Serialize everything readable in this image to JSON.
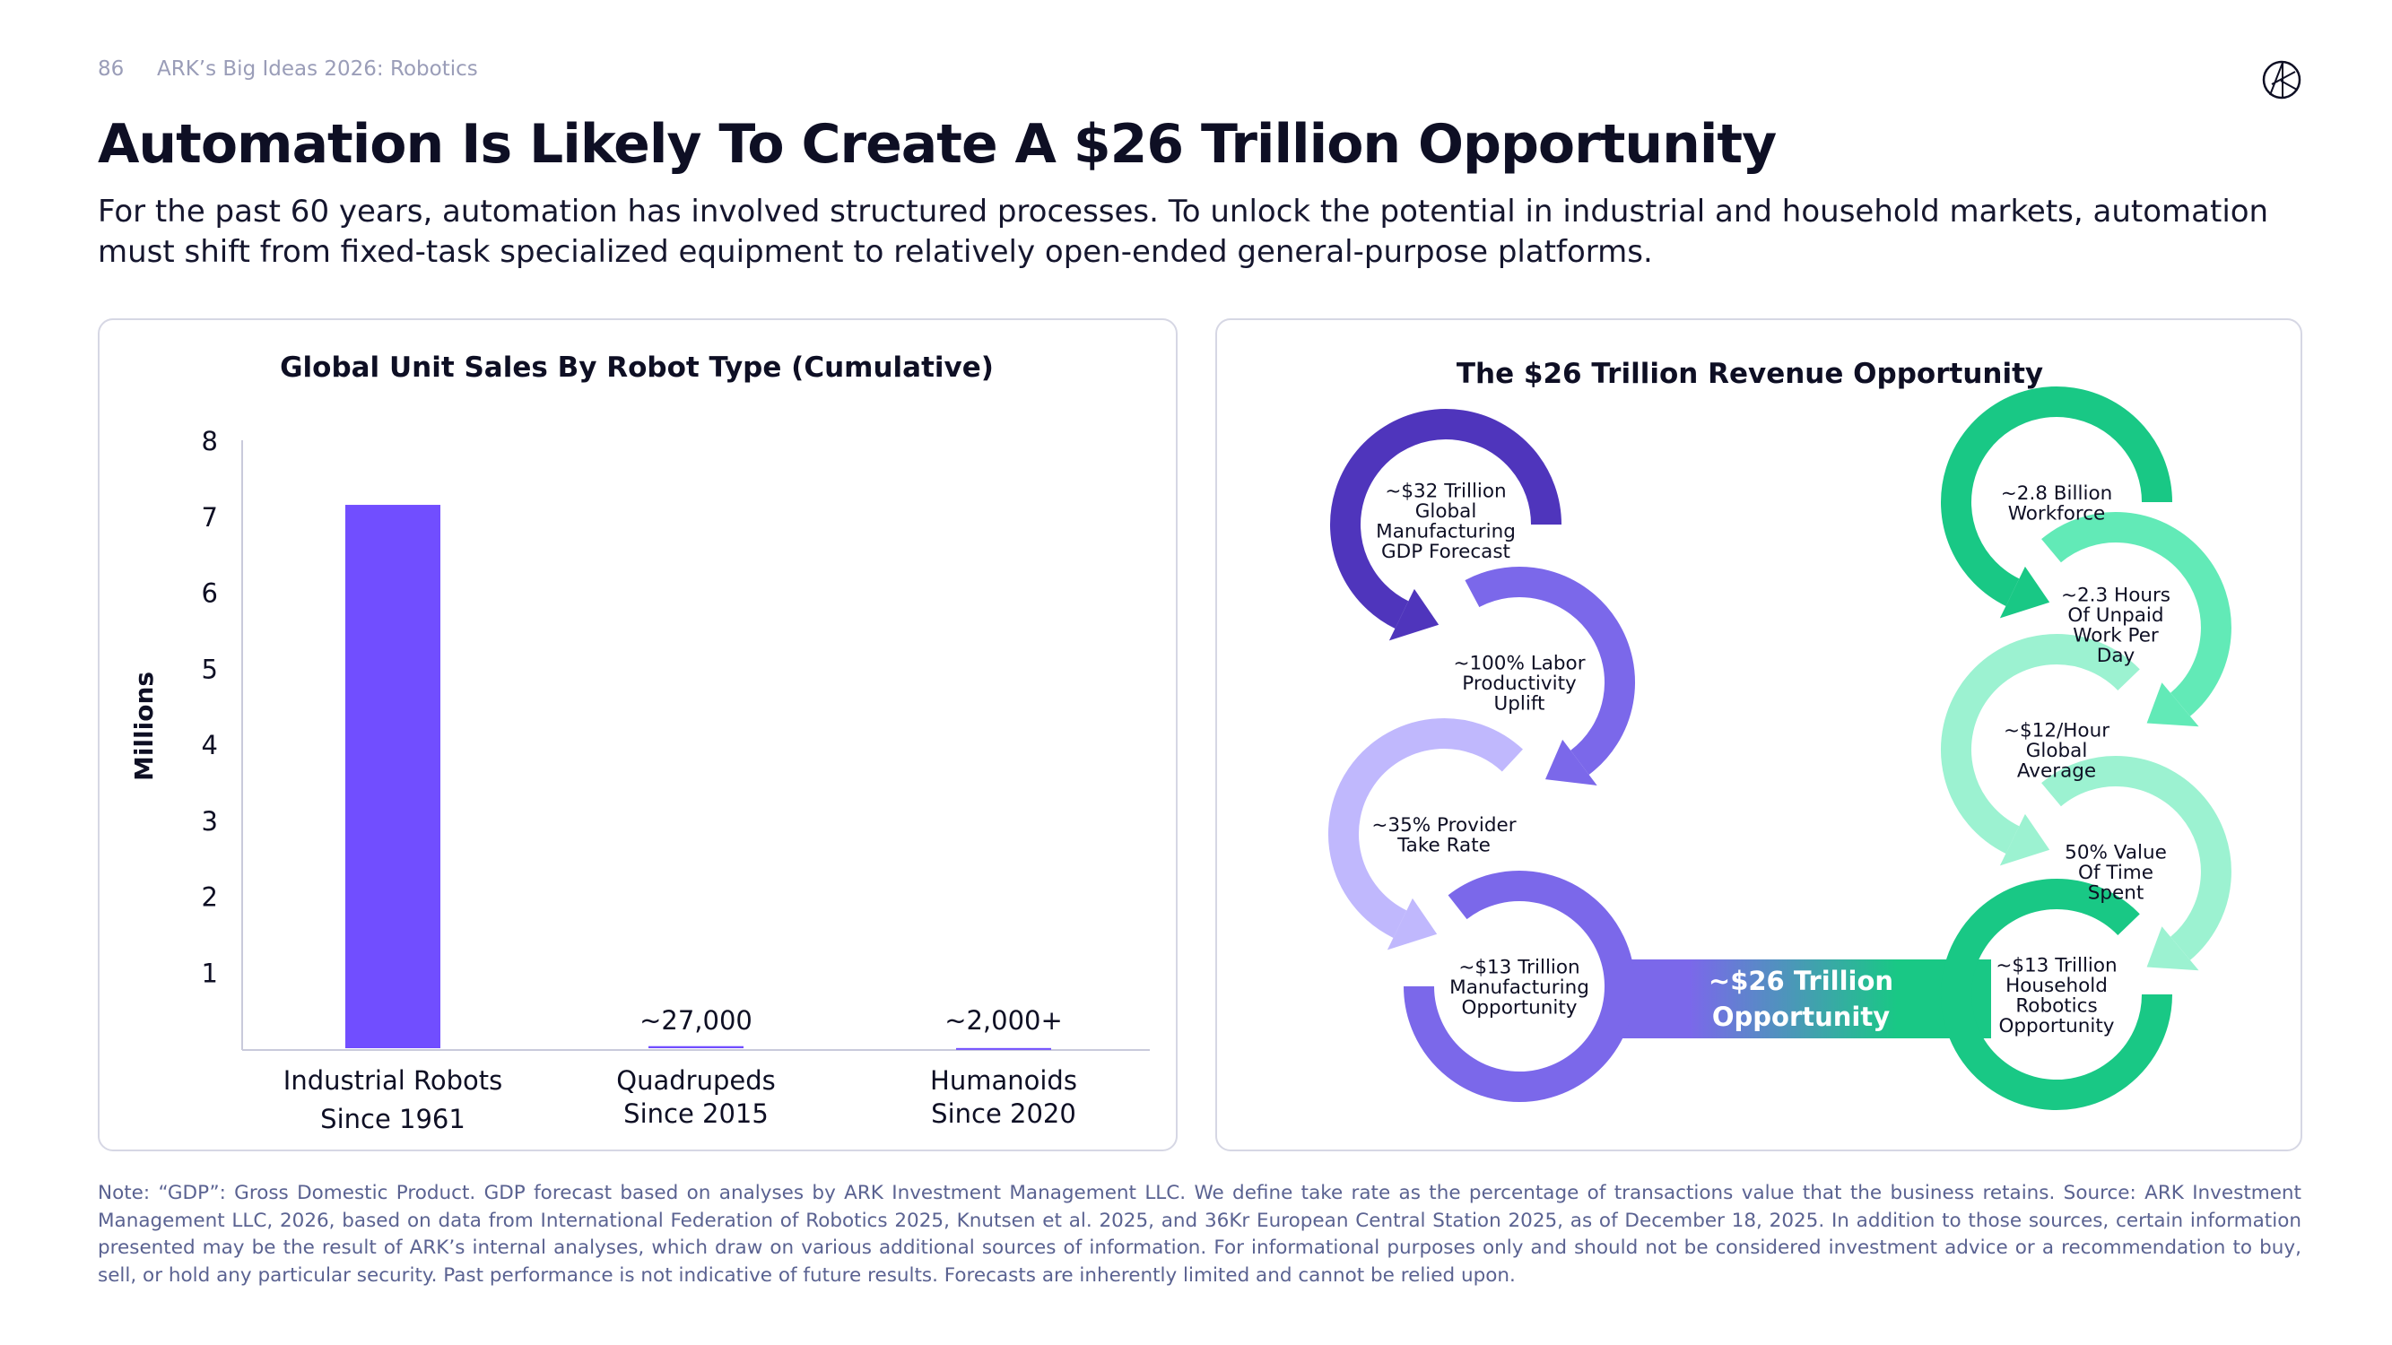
{
  "header": {
    "page_number": "86",
    "series_title": "ARK’s Big Ideas 2026: Robotics",
    "logo": "ark-logo-icon",
    "title": "Automation Is Likely To Create A $26 Trillion Opportunity",
    "subtitle": "For the past 60 years, automation has involved structured processes. To unlock the potential in industrial and household markets, automation must shift from fixed-task specialized equipment to relatively open-ended general-purpose platforms."
  },
  "chart_data": {
    "type": "bar",
    "title": "Global Unit Sales By Robot Type (Cumulative)",
    "ylabel": "Millions",
    "xlabel": "",
    "ylim": [
      0,
      8
    ],
    "yticks": [
      "1",
      "2",
      "3",
      "4",
      "5",
      "6",
      "7",
      "8"
    ],
    "grid": false,
    "bar_color": "#714EFF",
    "categories": [
      {
        "line1": "Industrial Robots",
        "line2": "Since 1961"
      },
      {
        "line1": "Quadrupeds",
        "line2": "Since 2015"
      },
      {
        "line1": "Humanoids",
        "line2": "Since 2020"
      }
    ],
    "values": [
      7.15,
      0.027,
      0.002
    ],
    "data_labels": [
      "",
      "~27,000",
      "~2,000+"
    ]
  },
  "diagram": {
    "title": "The $26 Trillion Revenue Opportunity",
    "center_label": [
      "~$26 Trillion",
      "Opportunity"
    ],
    "band_colors": [
      "#7B68EA",
      "#19C885"
    ],
    "manufacturing_chain": [
      {
        "lines": [
          "~$32 Trillion",
          "Global",
          "Manufacturing",
          "GDP Forecast"
        ],
        "color": "#4F35BC"
      },
      {
        "lines": [
          "~100% Labor",
          "Productivity",
          "Uplift"
        ],
        "color": "#7B68EA"
      },
      {
        "lines": [
          "~35% Provider",
          "Take Rate"
        ],
        "color": "#C0B8FD"
      },
      {
        "lines": [
          "~$13 Trillion",
          "Manufacturing",
          "Opportunity"
        ],
        "color": "#7B68EA"
      }
    ],
    "household_chain": [
      {
        "lines": [
          "~2.8 Billion",
          "Workforce"
        ],
        "color": "#19C885"
      },
      {
        "lines": [
          "~2.3 Hours",
          "Of Unpaid",
          "Work Per",
          "Day"
        ],
        "color": "#62EAB7"
      },
      {
        "lines": [
          "~$12/Hour",
          "Global",
          "Average"
        ],
        "color": "#9CF2D1"
      },
      {
        "lines": [
          "50% Value",
          "Of Time",
          "Spent"
        ],
        "color": "#9CF2D1"
      },
      {
        "lines": [
          "~$13 Trillion",
          "Household",
          "Robotics",
          "Opportunity"
        ],
        "color": "#19C885"
      }
    ]
  },
  "footer": {
    "note": "Note: “GDP”: Gross Domestic Product. GDP forecast based on analyses by ARK Investment Management LLC. We define take rate as the percentage of transactions value that the business retains. Source: ARK Investment Management LLC, 2026, based on data from International Federation of Robotics 2025, Knutsen et al. 2025, and 36Kr European Central Station 2025, as of December 18, 2025. In addition to those sources, certain information presented may be the result of ARK’s internal analyses, which draw on various additional sources of information. For informational purposes only and should not be considered investment advice or a recommendation to buy, sell, or hold any particular security. Past performance is not indicative of future results. Forecasts are inherently limited and cannot be relied upon."
  }
}
